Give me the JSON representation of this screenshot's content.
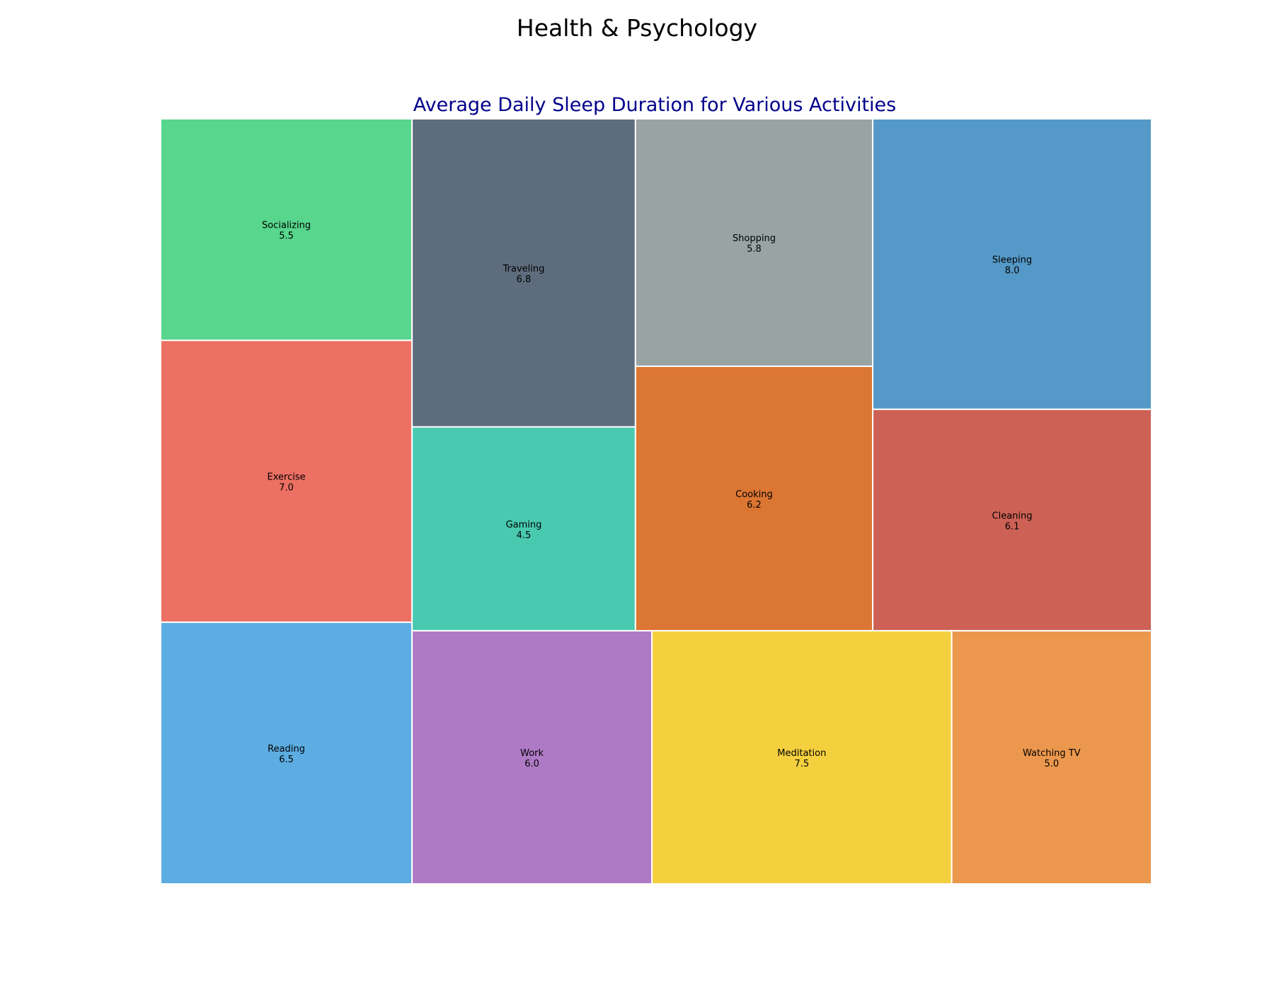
{
  "figure_title": "Health & Psychology",
  "chart_data": {
    "type": "treemap",
    "title": "Average Daily Sleep Duration for Various Activities",
    "grid": false,
    "items": [
      {
        "label": "Reading",
        "value": 6.5,
        "color": "#5dade2"
      },
      {
        "label": "Exercise",
        "value": 7.0,
        "color": "#ec7063"
      },
      {
        "label": "Socializing",
        "value": 5.5,
        "color": "#58d68d"
      },
      {
        "label": "Work",
        "value": 6.0,
        "color": "#af7ac5"
      },
      {
        "label": "Meditation",
        "value": 7.5,
        "color": "#f4d03f"
      },
      {
        "label": "Watching TV",
        "value": 5.0,
        "color": "#eb984e"
      },
      {
        "label": "Gaming",
        "value": 4.5,
        "color": "#48c9b0"
      },
      {
        "label": "Traveling",
        "value": 6.8,
        "color": "#5d6d7e"
      },
      {
        "label": "Cooking",
        "value": 6.2,
        "color": "#dc7633"
      },
      {
        "label": "Shopping",
        "value": 5.8,
        "color": "#99a3a4"
      },
      {
        "label": "Cleaning",
        "value": 6.1,
        "color": "#cd6155"
      },
      {
        "label": "Sleeping",
        "value": 8.0,
        "color": "#5499c7"
      }
    ]
  }
}
